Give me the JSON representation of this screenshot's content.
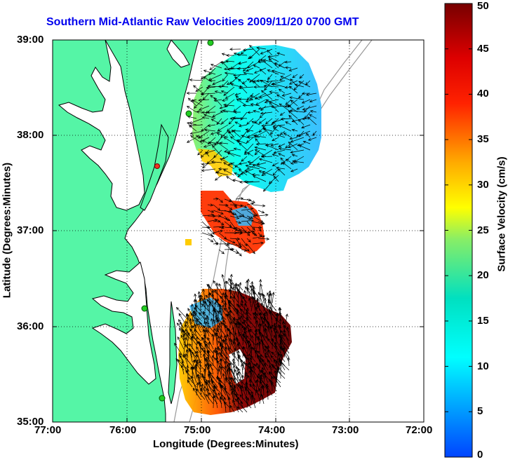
{
  "title": "Southern Mid-Atlantic Raw Velocities 2009/11/20 0700 GMT",
  "xlabel": "Longitude (Degrees:Minutes)",
  "ylabel": "Latitude (Degrees:Minutes)",
  "colorbar": {
    "label": "Surface Velocity (cm/s)",
    "ticks": [
      "0",
      "5",
      "10",
      "15",
      "20",
      "25",
      "30",
      "35",
      "40",
      "45",
      "50"
    ]
  },
  "x_ticks": [
    "77:00",
    "76:00",
    "75:00",
    "74:00",
    "73:00",
    "72:00"
  ],
  "y_ticks": [
    "39:00",
    "38:00",
    "37:00",
    "36:00",
    "35:00"
  ],
  "colors": {
    "land": "#55f5a6",
    "title": "#0000ee",
    "station": "#22cc22",
    "station_alt": "#ee3322"
  }
}
